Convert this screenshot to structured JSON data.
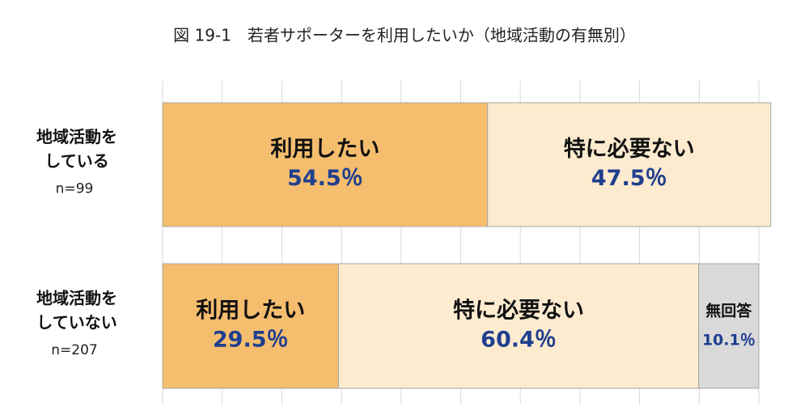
{
  "chart_data": {
    "type": "stacked-bar-horizontal",
    "title": "図 19-1　若者サポーターを利用したいか（地域活動の有無別）",
    "categories": [
      [
        "地域活動を",
        "している"
      ],
      [
        "地域活動を",
        "していない"
      ]
    ],
    "category_notes": [
      "n=99",
      "n=207"
    ],
    "series": [
      {
        "name": "利用したい",
        "color": "#f5bd6e",
        "values": [
          54.5,
          29.5
        ],
        "value_labels": [
          "54.5％",
          "29.5％"
        ]
      },
      {
        "name": "特に必要ない",
        "color": "#fdebcf",
        "values": [
          47.5,
          60.4
        ],
        "value_labels": [
          "47.5％",
          "60.4％"
        ]
      },
      {
        "name": "無回答",
        "color": "#d9d9d9",
        "values": [
          null,
          10.1
        ],
        "value_labels": [
          null,
          "10.1％"
        ]
      }
    ],
    "xlim": [
      0,
      100
    ],
    "xticks": [
      0,
      10,
      20,
      30,
      40,
      50,
      60,
      70,
      80,
      90,
      100
    ],
    "grid": true
  }
}
